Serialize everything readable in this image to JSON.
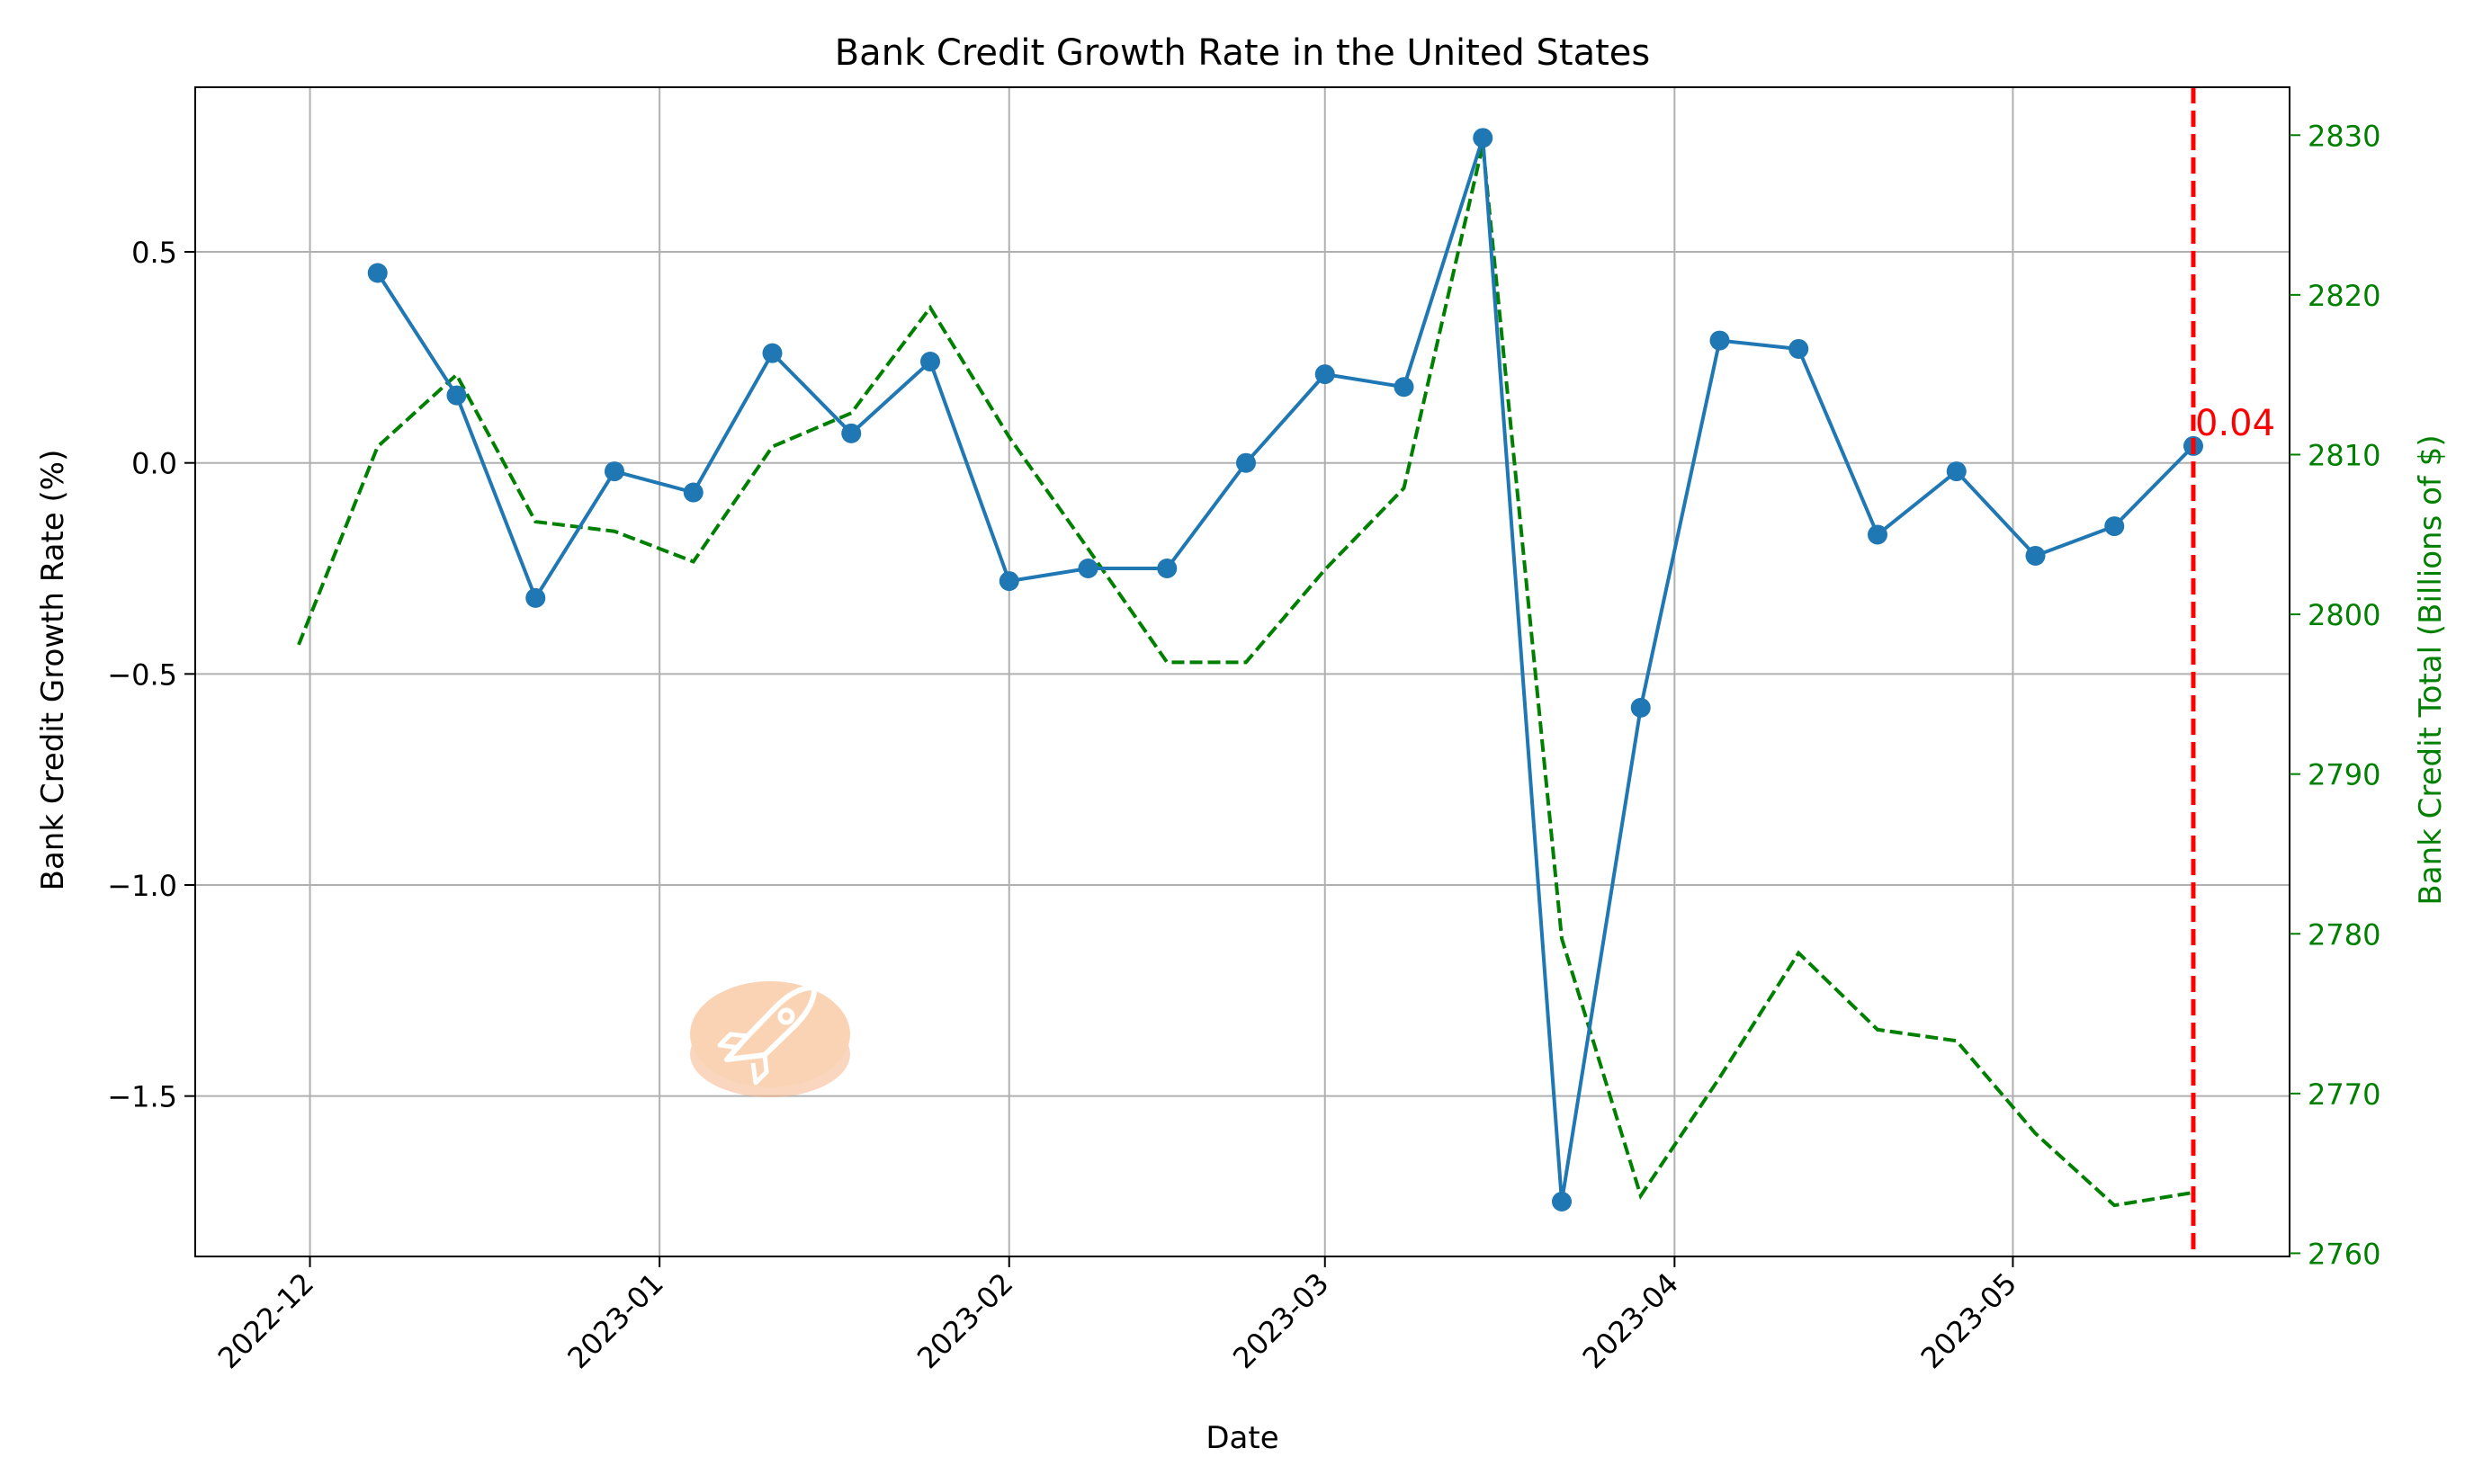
{
  "chart_data": {
    "type": "line",
    "title": "Bank Credit Growth Rate in the United States",
    "xlabel": "Date",
    "ylabel": "Bank Credit Growth Rate (%)",
    "y2label": "Bank Credit Total (Billions of $)",
    "x_ticks": [
      "2022-12",
      "2023-01",
      "2023-02",
      "2023-03",
      "2023-04",
      "2023-05"
    ],
    "y_ticks": [
      "0.5",
      "0.0",
      "−0.5",
      "−1.0",
      "−1.5"
    ],
    "y2_ticks": [
      "2830",
      "2820",
      "2810",
      "2800",
      "2790",
      "2780",
      "2770",
      "2760"
    ],
    "ylim": [
      -1.88,
      0.89
    ],
    "y2lim": [
      2759.8,
      2833.0
    ],
    "grid": true,
    "series": [
      {
        "axis": "left",
        "style": "solid-markers",
        "x": [
          "2022-11-30",
          "2022-12-07",
          "2022-12-14",
          "2022-12-21",
          "2022-12-28",
          "2023-01-04",
          "2023-01-11",
          "2023-01-18",
          "2023-01-25",
          "2023-02-01",
          "2023-02-08",
          "2023-02-15",
          "2023-02-22",
          "2023-03-01",
          "2023-03-08",
          "2023-03-15",
          "2023-03-22",
          "2023-03-29",
          "2023-04-05",
          "2023-04-12",
          "2023-04-19",
          "2023-04-26",
          "2023-05-03",
          "2023-05-10",
          "2023-05-17"
        ],
        "values": [
          null,
          0.45,
          0.16,
          -0.32,
          -0.02,
          -0.07,
          0.26,
          0.07,
          0.24,
          -0.28,
          -0.25,
          -0.25,
          0.0,
          0.21,
          0.18,
          0.77,
          -1.75,
          -0.58,
          0.29,
          0.27,
          -0.17,
          -0.02,
          -0.22,
          -0.15,
          0.04
        ]
      },
      {
        "axis": "right",
        "style": "dashed",
        "x": [
          "2022-11-30",
          "2022-12-07",
          "2022-12-14",
          "2022-12-21",
          "2022-12-28",
          "2023-01-04",
          "2023-01-11",
          "2023-01-18",
          "2023-01-25",
          "2023-02-01",
          "2023-02-08",
          "2023-02-15",
          "2023-02-22",
          "2023-03-01",
          "2023-03-08",
          "2023-03-15",
          "2023-03-22",
          "2023-03-29",
          "2023-04-05",
          "2023-04-12",
          "2023-04-19",
          "2023-04-26",
          "2023-05-03",
          "2023-05-10",
          "2023-05-17"
        ],
        "values": [
          2798.1,
          2810.5,
          2815.0,
          2805.8,
          2805.2,
          2803.3,
          2810.5,
          2812.6,
          2819.2,
          2811.1,
          2804.1,
          2797.0,
          2797.0,
          2802.8,
          2807.9,
          2829.4,
          2779.7,
          2763.6,
          2771.0,
          2778.8,
          2774.0,
          2773.3,
          2767.5,
          2763.0,
          2763.8
        ]
      }
    ],
    "annotation": {
      "x": "2023-05-17",
      "text": "0.04"
    },
    "colors": {
      "growth": "#1f77b4",
      "total": "#008000",
      "marker_line": "#ff0000"
    }
  }
}
